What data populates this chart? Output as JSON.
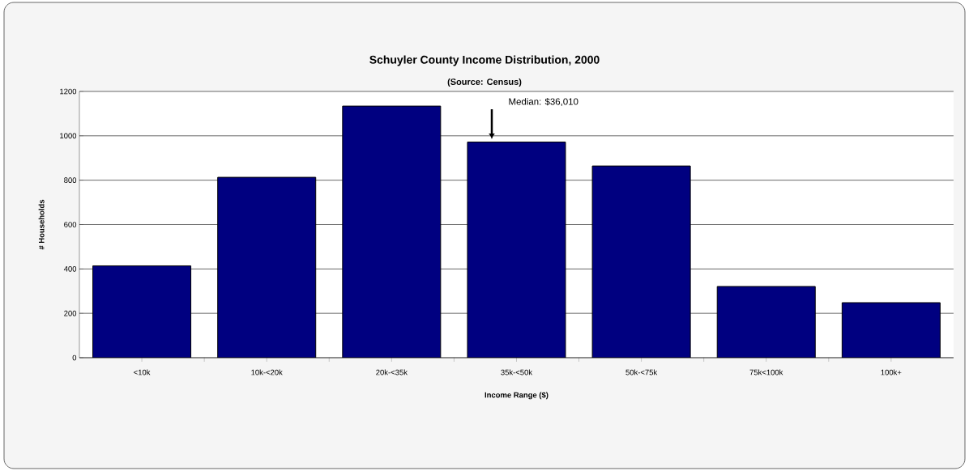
{
  "chart_data": {
    "type": "bar",
    "title": "Schuyler County Income Distribution, 2000",
    "subtitle": "(Source: Census)",
    "xlabel": "Income Range ($)",
    "ylabel": "# Households",
    "categories": [
      "<10k",
      "10k-<20k",
      "20k-<35k",
      "35k-<50k",
      "50k-<75k",
      "75k<100k",
      "100k+"
    ],
    "values": [
      414,
      813,
      1134,
      972,
      864,
      321,
      248
    ],
    "color": "#000080",
    "ylim": [
      0,
      1200
    ],
    "yticks": [
      0,
      200,
      400,
      600,
      800,
      1000,
      1200
    ],
    "grid": "y",
    "annotations": [
      "Median: $36,010"
    ]
  }
}
